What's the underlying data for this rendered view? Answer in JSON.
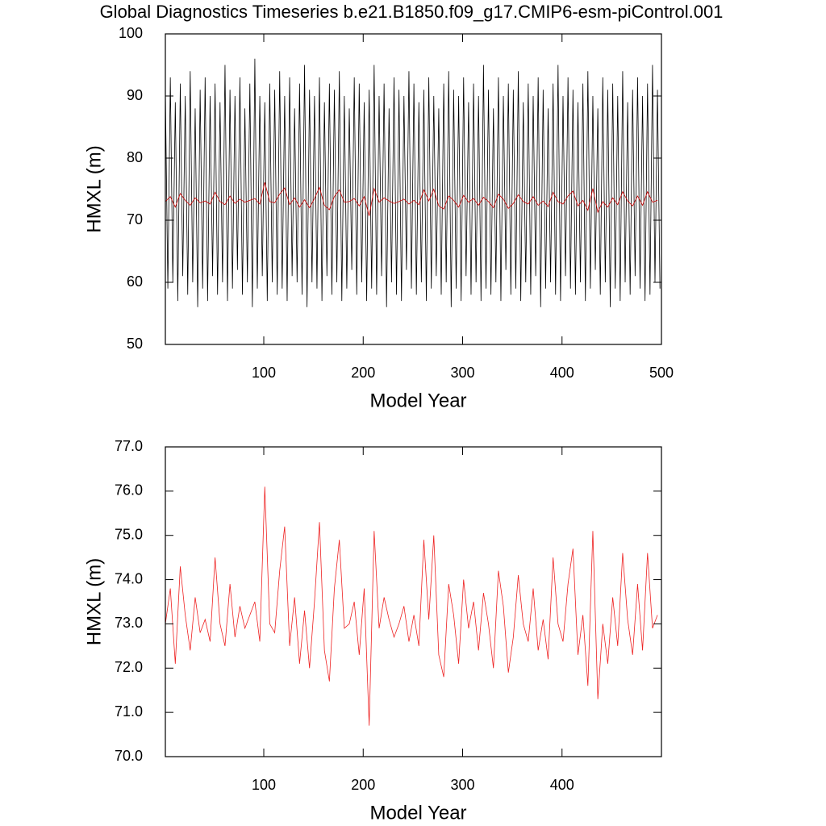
{
  "chart_data": [
    {
      "type": "line",
      "title": "Global Diagnostics Timeseries b.e21.B1850.f09_g17.CMIP6-esm-piControl.001",
      "x_label": "Model Year",
      "y_label": "HMXL (m)",
      "xlim": [
        1,
        500
      ],
      "xticks": [
        100,
        200,
        300,
        400,
        500
      ],
      "ylim": [
        50,
        100
      ],
      "yticks": [
        50,
        60,
        70,
        80,
        90,
        100
      ],
      "series": [
        {
          "color": "#000000",
          "x": [
            1,
            3.5,
            6,
            8.5,
            11,
            13.5,
            16,
            18.5,
            21,
            23.5,
            26,
            28.5,
            31,
            33.5,
            36,
            38.5,
            41,
            43.5,
            46,
            48.5,
            51,
            53.5,
            56,
            58.5,
            61,
            63.5,
            66,
            68.5,
            71,
            73.5,
            76,
            78.5,
            81,
            83.5,
            86,
            88.5,
            91,
            93.5,
            96,
            98.5,
            101,
            103.5,
            106,
            108.5,
            111,
            113.5,
            116,
            118.5,
            121,
            123.5,
            126,
            128.5,
            131,
            133.5,
            136,
            138.5,
            141,
            143.5,
            146,
            148.5,
            151,
            153.5,
            156,
            158.5,
            161,
            163.5,
            166,
            168.5,
            171,
            173.5,
            176,
            178.5,
            181,
            183.5,
            186,
            188.5,
            191,
            193.5,
            196,
            198.5,
            201,
            203.5,
            206,
            208.5,
            211,
            213.5,
            216,
            218.5,
            221,
            223.5,
            226,
            228.5,
            231,
            233.5,
            236,
            238.5,
            241,
            243.5,
            246,
            248.5,
            251,
            253.5,
            256,
            258.5,
            261,
            263.5,
            266,
            268.5,
            271,
            273.5,
            276,
            278.5,
            281,
            283.5,
            286,
            288.5,
            291,
            293.5,
            296,
            298.5,
            301,
            303.5,
            306,
            308.5,
            311,
            313.5,
            316,
            318.5,
            321,
            323.5,
            326,
            328.5,
            331,
            333.5,
            336,
            338.5,
            341,
            343.5,
            346,
            348.5,
            351,
            353.5,
            356,
            358.5,
            361,
            363.5,
            366,
            368.5,
            371,
            373.5,
            376,
            378.5,
            381,
            383.5,
            386,
            388.5,
            391,
            393.5,
            396,
            398.5,
            401,
            403.5,
            406,
            408.5,
            411,
            413.5,
            416,
            418.5,
            421,
            423.5,
            426,
            428.5,
            431,
            433.5,
            436,
            438.5,
            441,
            443.5,
            446,
            448.5,
            451,
            453.5,
            456,
            458.5,
            461,
            463.5,
            466,
            468.5,
            471,
            473.5,
            476,
            478.5,
            481,
            483.5,
            486,
            488.5,
            491,
            493.5,
            496,
            498.5
          ],
          "values": [
            91,
            59,
            93,
            60,
            89,
            57,
            92,
            61,
            90,
            58,
            94,
            60,
            88,
            56,
            91,
            59,
            93,
            57,
            90,
            61,
            92,
            58,
            89,
            60,
            95,
            57,
            91,
            59,
            90,
            62,
            93,
            58,
            88,
            60,
            92,
            56,
            96,
            59,
            90,
            61,
            89,
            57,
            92,
            60,
            91,
            58,
            94,
            59,
            90,
            57,
            93,
            61,
            88,
            60,
            92,
            58,
            95,
            56,
            91,
            60,
            90,
            59,
            93,
            57,
            89,
            61,
            92,
            58,
            91,
            60,
            94,
            57,
            90,
            59,
            88,
            62,
            93,
            58,
            92,
            60,
            89,
            57,
            91,
            59,
            95,
            58,
            90,
            61,
            92,
            56,
            88,
            60,
            93,
            58,
            91,
            57,
            90,
            62,
            94,
            59,
            92,
            58,
            89,
            60,
            91,
            57,
            93,
            59,
            90,
            61,
            88,
            58,
            92,
            60,
            94,
            56,
            91,
            59,
            90,
            57,
            93,
            61,
            89,
            58,
            92,
            60,
            90,
            57,
            95,
            59,
            91,
            58,
            88,
            60,
            93,
            57,
            90,
            62,
            92,
            58,
            91,
            59,
            94,
            57,
            89,
            60,
            92,
            58,
            90,
            61,
            93,
            56,
            91,
            59,
            88,
            60,
            92,
            58,
            95,
            57,
            90,
            61,
            93,
            59,
            91,
            58,
            89,
            60,
            92,
            57,
            94,
            59,
            90,
            62,
            88,
            58,
            93,
            60,
            91,
            56,
            92,
            59,
            90,
            57,
            94,
            60,
            89,
            58,
            91,
            61,
            93,
            59,
            90,
            57,
            92,
            58,
            95,
            60,
            91,
            59
          ]
        },
        {
          "color": "#cc0000",
          "x": [
            1,
            6,
            11,
            16,
            21,
            26,
            31,
            36,
            41,
            46,
            51,
            56,
            61,
            66,
            71,
            76,
            81,
            86,
            91,
            96,
            101,
            106,
            111,
            116,
            121,
            126,
            131,
            136,
            141,
            146,
            151,
            156,
            161,
            166,
            171,
            176,
            181,
            186,
            191,
            196,
            201,
            206,
            211,
            216,
            221,
            226,
            231,
            236,
            241,
            246,
            251,
            256,
            261,
            266,
            271,
            276,
            281,
            286,
            291,
            296,
            301,
            306,
            311,
            316,
            321,
            326,
            331,
            336,
            341,
            346,
            351,
            356,
            361,
            366,
            371,
            376,
            381,
            386,
            391,
            396,
            401,
            406,
            411,
            416,
            421,
            426,
            431,
            436,
            441,
            446,
            451,
            456,
            461,
            466,
            471,
            476,
            481,
            486,
            491,
            496
          ],
          "values": [
            73.0,
            73.8,
            72.1,
            74.3,
            73.2,
            72.4,
            73.6,
            72.8,
            73.1,
            72.6,
            74.5,
            73.0,
            72.5,
            73.9,
            72.7,
            73.4,
            72.9,
            73.2,
            73.5,
            72.6,
            76.1,
            73.0,
            72.8,
            74.2,
            75.2,
            72.5,
            73.6,
            72.1,
            73.3,
            72.0,
            73.5,
            75.3,
            72.4,
            71.7,
            73.8,
            74.9,
            72.9,
            73.0,
            73.5,
            72.3,
            73.8,
            70.7,
            75.1,
            72.9,
            73.6,
            73.1,
            72.7,
            73.0,
            73.4,
            72.6,
            73.2,
            72.5,
            74.9,
            73.1,
            75.0,
            72.3,
            71.8,
            73.9,
            73.2,
            72.1,
            74.0,
            72.9,
            73.5,
            72.4,
            73.7,
            73.0,
            72.0,
            74.2,
            73.4,
            71.9,
            72.7,
            74.1,
            73.0,
            72.6,
            73.8,
            72.4,
            73.1,
            72.2,
            74.5,
            73.0,
            72.6,
            73.9,
            74.7,
            72.3,
            73.2,
            71.6,
            75.1,
            71.3,
            73.0,
            72.1,
            73.6,
            72.5,
            74.6,
            73.1,
            72.3,
            73.9,
            72.4,
            74.6,
            72.9,
            73.2
          ]
        }
      ]
    },
    {
      "type": "line",
      "x_label": "Model Year",
      "y_label": "HMXL (m)",
      "xlim": [
        1,
        500
      ],
      "xticks": [
        100,
        200,
        300,
        400
      ],
      "ylim": [
        70,
        77
      ],
      "yticks": [
        {
          "value": 70,
          "label": "70.0"
        },
        {
          "value": 71,
          "label": "71.0"
        },
        {
          "value": 72,
          "label": "72.0"
        },
        {
          "value": 73,
          "label": "73.0"
        },
        {
          "value": 74,
          "label": "74.0"
        },
        {
          "value": 75,
          "label": "75.0"
        },
        {
          "value": 76,
          "label": "76.0"
        },
        {
          "value": 77,
          "label": "77.0"
        }
      ],
      "series": [
        {
          "color": "#ee2222",
          "x": [
            1,
            6,
            11,
            16,
            21,
            26,
            31,
            36,
            41,
            46,
            51,
            56,
            61,
            66,
            71,
            76,
            81,
            86,
            91,
            96,
            101,
            106,
            111,
            116,
            121,
            126,
            131,
            136,
            141,
            146,
            151,
            156,
            161,
            166,
            171,
            176,
            181,
            186,
            191,
            196,
            201,
            206,
            211,
            216,
            221,
            226,
            231,
            236,
            241,
            246,
            251,
            256,
            261,
            266,
            271,
            276,
            281,
            286,
            291,
            296,
            301,
            306,
            311,
            316,
            321,
            326,
            331,
            336,
            341,
            346,
            351,
            356,
            361,
            366,
            371,
            376,
            381,
            386,
            391,
            396,
            401,
            406,
            411,
            416,
            421,
            426,
            431,
            436,
            441,
            446,
            451,
            456,
            461,
            466,
            471,
            476,
            481,
            486,
            491,
            496
          ],
          "values": [
            73.0,
            73.8,
            72.1,
            74.3,
            73.2,
            72.4,
            73.6,
            72.8,
            73.1,
            72.6,
            74.5,
            73.0,
            72.5,
            73.9,
            72.7,
            73.4,
            72.9,
            73.2,
            73.5,
            72.6,
            76.1,
            73.0,
            72.8,
            74.2,
            75.2,
            72.5,
            73.6,
            72.1,
            73.3,
            72.0,
            73.5,
            75.3,
            72.4,
            71.7,
            73.8,
            74.9,
            72.9,
            73.0,
            73.5,
            72.3,
            73.8,
            70.7,
            75.1,
            72.9,
            73.6,
            73.1,
            72.7,
            73.0,
            73.4,
            72.6,
            73.2,
            72.5,
            74.9,
            73.1,
            75.0,
            72.3,
            71.8,
            73.9,
            73.2,
            72.1,
            74.0,
            72.9,
            73.5,
            72.4,
            73.7,
            73.0,
            72.0,
            74.2,
            73.4,
            71.9,
            72.7,
            74.1,
            73.0,
            72.6,
            73.8,
            72.4,
            73.1,
            72.2,
            74.5,
            73.0,
            72.6,
            73.9,
            74.7,
            72.3,
            73.2,
            71.6,
            75.1,
            71.3,
            73.0,
            72.1,
            73.6,
            72.5,
            74.6,
            73.1,
            72.3,
            73.9,
            72.4,
            74.6,
            72.9,
            73.2
          ]
        }
      ]
    }
  ]
}
